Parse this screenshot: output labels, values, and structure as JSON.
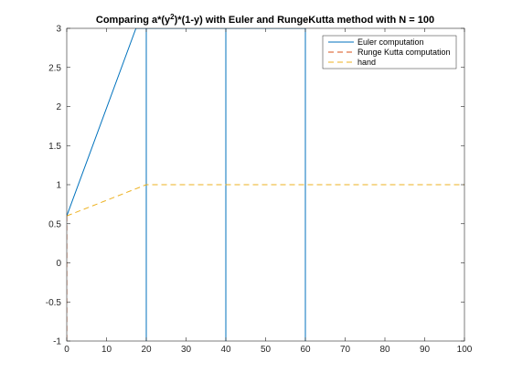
{
  "chart_data": {
    "type": "line",
    "title": "Comparing a*(y²)*(1-y) with Euler and RungeKutta method with N = 100",
    "title_parts": {
      "before_sup": "Comparing a*(y",
      "sup": "2",
      "after_sup": ")*(1-y) with Euler and RungeKutta method with N = 100"
    },
    "xlabel": "",
    "ylabel": "",
    "xlim": [
      0,
      100
    ],
    "ylim": [
      -1,
      3
    ],
    "xticks": [
      0,
      10,
      20,
      30,
      40,
      50,
      60,
      70,
      80,
      90,
      100
    ],
    "yticks": [
      -1,
      -0.5,
      0,
      0.5,
      1,
      1.5,
      2,
      2.5,
      3
    ],
    "xtick_labels": [
      "0",
      "10",
      "20",
      "30",
      "40",
      "50",
      "60",
      "70",
      "80",
      "90",
      "100"
    ],
    "ytick_labels": [
      "-1",
      "-0.5",
      "0",
      "0.5",
      "1",
      "1.5",
      "2",
      "2.5",
      "3"
    ],
    "grid": false,
    "legend_position": "top-right",
    "series": [
      {
        "name": "Euler computation",
        "color": "#0072bd",
        "dash": "solid",
        "x": [
          0,
          17.4,
          20,
          20,
          20,
          20,
          20,
          40,
          40,
          40,
          60,
          60
        ],
        "y": [
          0.6,
          3.0,
          3.0,
          -1,
          -1,
          3.0,
          3.0,
          3.0,
          -1,
          3.0,
          3.0,
          -1
        ]
      },
      {
        "name": "Runge Kutta computation",
        "color": "#d95319",
        "dash": "dashed",
        "x": [
          0,
          0
        ],
        "y": [
          0.6,
          -1
        ]
      },
      {
        "name": "hand",
        "color": "#edb120",
        "dash": "dashed",
        "x": [
          0,
          20,
          100
        ],
        "y": [
          0.6,
          1.0,
          1.0
        ]
      }
    ]
  }
}
